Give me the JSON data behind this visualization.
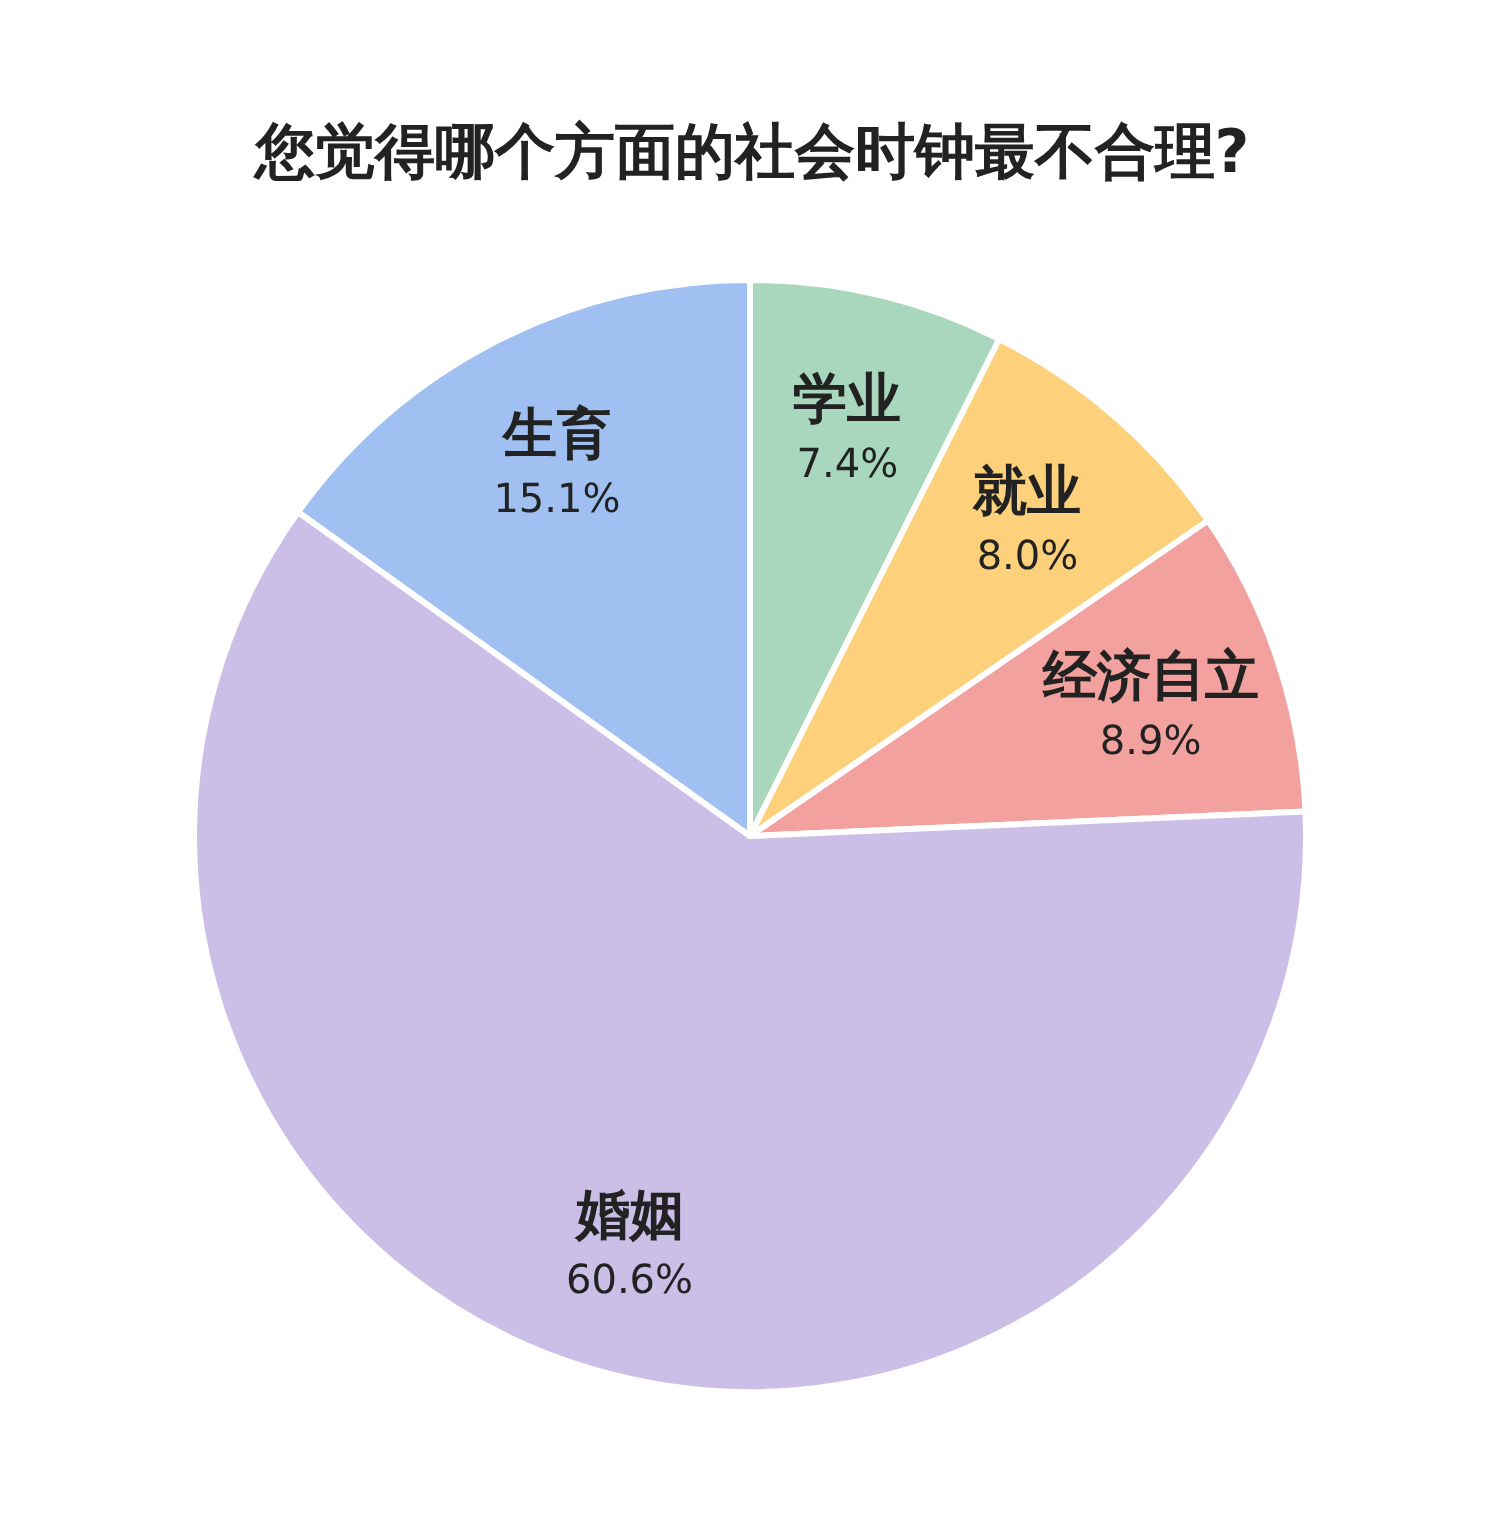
{
  "chart_data": {
    "type": "pie",
    "title": "您觉得哪个方面的社会时钟最不合理?",
    "categories": [
      "学业",
      "就业",
      "经济自立",
      "婚姻",
      "生育"
    ],
    "values": [
      7.4,
      8.0,
      8.9,
      60.6,
      15.1
    ],
    "value_labels": [
      "7.4%",
      "8.0%",
      "8.9%",
      "60.6%",
      "15.1%"
    ],
    "colors": [
      "#a9d7bd",
      "#fdd07b",
      "#f3a19e",
      "#cbbfe8",
      "#9fc0f0"
    ]
  }
}
